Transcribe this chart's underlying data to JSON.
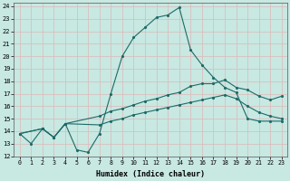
{
  "xlabel": "Humidex (Indice chaleur)",
  "xlim": [
    -0.5,
    23.5
  ],
  "ylim": [
    12,
    24.3
  ],
  "yticks": [
    12,
    13,
    14,
    15,
    16,
    17,
    18,
    19,
    20,
    21,
    22,
    23,
    24
  ],
  "xticks": [
    0,
    1,
    2,
    3,
    4,
    5,
    6,
    7,
    8,
    9,
    10,
    11,
    12,
    13,
    14,
    15,
    16,
    17,
    18,
    19,
    20,
    21,
    22,
    23
  ],
  "bg": "#c8e8e2",
  "grid_color": "#ddb8b8",
  "lc": "#1c6b68",
  "line1_x": [
    0,
    1,
    2,
    3,
    4,
    5,
    6,
    7,
    8,
    9,
    10,
    11,
    12,
    13,
    14,
    15,
    16,
    17,
    18,
    19,
    20,
    21,
    22,
    23
  ],
  "line1_y": [
    13.8,
    13.0,
    14.2,
    13.5,
    14.6,
    12.5,
    12.3,
    13.8,
    17.0,
    20.0,
    21.5,
    22.3,
    23.1,
    23.3,
    23.9,
    20.5,
    19.3,
    18.3,
    17.5,
    17.1,
    15.0,
    14.8,
    14.8,
    14.8
  ],
  "line2_x": [
    0,
    2,
    3,
    4,
    7,
    8,
    9,
    10,
    11,
    12,
    13,
    14,
    15,
    16,
    17,
    18,
    19,
    20,
    21,
    22,
    23
  ],
  "line2_y": [
    13.8,
    14.2,
    13.5,
    14.6,
    15.2,
    15.6,
    15.8,
    16.1,
    16.4,
    16.6,
    16.9,
    17.1,
    17.6,
    17.8,
    17.8,
    18.1,
    17.5,
    17.3,
    16.8,
    16.5,
    16.8
  ],
  "line3_x": [
    0,
    2,
    3,
    4,
    7,
    8,
    9,
    10,
    11,
    12,
    13,
    14,
    15,
    16,
    17,
    18,
    19,
    20,
    21,
    22,
    23
  ],
  "line3_y": [
    13.8,
    14.2,
    13.5,
    14.6,
    14.5,
    14.8,
    15.0,
    15.3,
    15.5,
    15.7,
    15.9,
    16.1,
    16.3,
    16.5,
    16.7,
    16.9,
    16.6,
    16.0,
    15.5,
    15.2,
    15.0
  ]
}
